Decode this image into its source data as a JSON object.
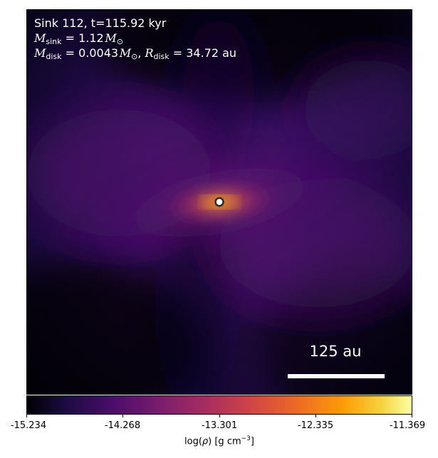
{
  "annotation": {
    "line1": "Sink 112, t=115.92 kyr",
    "sink_mass_label": "sink",
    "sink_mass_value": " = 1.12",
    "disk_mass_label": "disk",
    "disk_mass_value": " = 0.0043",
    "disk_radius_label": "disk",
    "disk_radius_value": " = 34.72 au"
  },
  "scalebar": {
    "label": "125 au"
  },
  "colorbar": {
    "ticks": [
      "-15.234",
      "-14.268",
      "-13.301",
      "-12.335",
      "-11.369"
    ],
    "axis_label_prefix": "log(",
    "axis_label_rho": "ρ",
    "axis_label_suffix": ") [g cm",
    "axis_label_exp": "−3",
    "axis_label_end": "]",
    "colormap": "inferno"
  },
  "colors": {
    "background_dark": "#0b0520",
    "envelope": "#3a0f63",
    "disk_core": "#fb9b06",
    "sink_marker": "#ffffff"
  }
}
